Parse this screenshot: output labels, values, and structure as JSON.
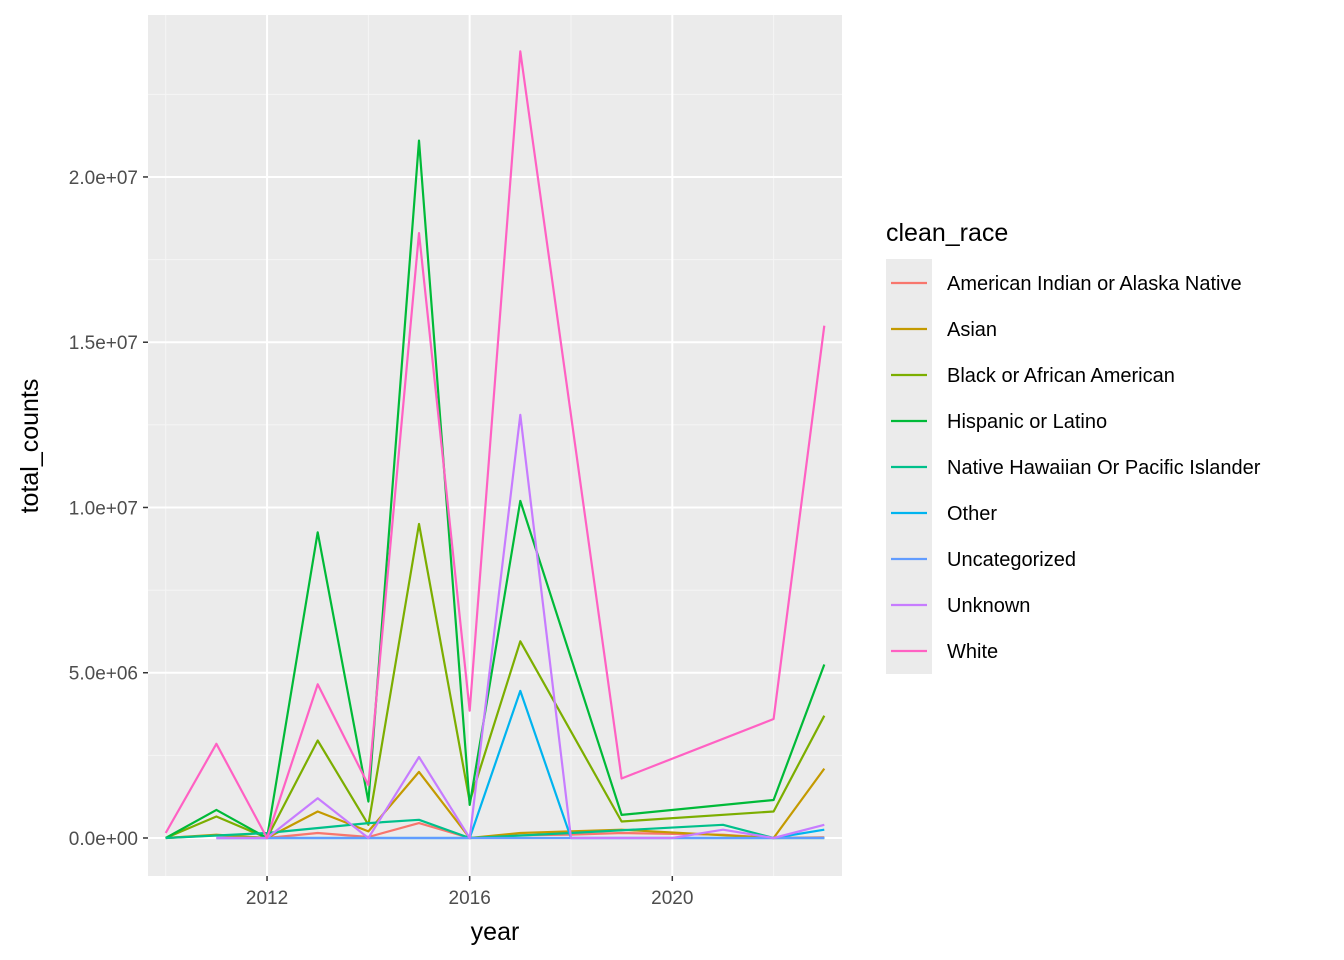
{
  "chart_data": {
    "type": "line",
    "xlabel": "year",
    "ylabel": "total_counts",
    "xlim": [
      2009.65,
      2023.35
    ],
    "ylim": [
      -1150000,
      24900000
    ],
    "x_ticks": [
      2012,
      2016,
      2020
    ],
    "x_tick_labels": [
      "2012",
      "2016",
      "2020"
    ],
    "x_minor_ticks": [
      2010,
      2014,
      2018,
      2022
    ],
    "y_ticks": [
      0,
      5000000,
      10000000,
      15000000,
      20000000
    ],
    "y_tick_labels": [
      "0.0e+00",
      "5.0e+06",
      "1.0e+07",
      "1.5e+07",
      "2.0e+07"
    ],
    "y_minor_ticks": [
      2500000,
      7500000,
      12500000,
      17500000,
      22500000
    ],
    "grid": true,
    "legend": {
      "title": "clean_race",
      "placement": "right"
    },
    "series": [
      {
        "name": "American Indian or Alaska Native",
        "color": "#F8766D",
        "points": [
          [
            2010,
            0
          ],
          [
            2011,
            80000
          ],
          [
            2012,
            0
          ],
          [
            2013,
            150000
          ],
          [
            2014,
            30000
          ],
          [
            2015,
            450000
          ],
          [
            2016,
            0
          ],
          [
            2017,
            80000
          ],
          [
            2018,
            100000
          ],
          [
            2019,
            150000
          ],
          [
            2021,
            100000
          ],
          [
            2022,
            0
          ],
          [
            2023,
            20000
          ]
        ]
      },
      {
        "name": "Asian",
        "color": "#C49A00",
        "points": [
          [
            2010,
            0
          ],
          [
            2011,
            100000
          ],
          [
            2012,
            0
          ],
          [
            2013,
            800000
          ],
          [
            2014,
            200000
          ],
          [
            2015,
            2000000
          ],
          [
            2016,
            0
          ],
          [
            2017,
            150000
          ],
          [
            2019,
            250000
          ],
          [
            2022,
            0
          ],
          [
            2023,
            2100000
          ]
        ]
      },
      {
        "name": "Black or African American",
        "color": "#7CAE00",
        "points": [
          [
            2010,
            0
          ],
          [
            2011,
            650000
          ],
          [
            2012,
            0
          ],
          [
            2013,
            2950000
          ],
          [
            2014,
            400000
          ],
          [
            2015,
            9500000
          ],
          [
            2016,
            1100000
          ],
          [
            2017,
            5950000
          ],
          [
            2019,
            500000
          ],
          [
            2022,
            800000
          ],
          [
            2023,
            3700000
          ]
        ]
      },
      {
        "name": "Hispanic or Latino",
        "color": "#00BA38",
        "points": [
          [
            2010,
            0
          ],
          [
            2011,
            850000
          ],
          [
            2012,
            0
          ],
          [
            2013,
            9250000
          ],
          [
            2014,
            1100000
          ],
          [
            2015,
            21100000
          ],
          [
            2016,
            1000000
          ],
          [
            2017,
            10200000
          ],
          [
            2019,
            700000
          ],
          [
            2022,
            1150000
          ],
          [
            2023,
            5250000
          ]
        ]
      },
      {
        "name": "Native Hawaiian Or Pacific Islander",
        "color": "#00C08B",
        "points": [
          [
            2010,
            0
          ],
          [
            2012,
            150000
          ],
          [
            2014,
            450000
          ],
          [
            2015,
            550000
          ],
          [
            2016,
            0
          ],
          [
            2018,
            150000
          ],
          [
            2021,
            400000
          ],
          [
            2022,
            0
          ],
          [
            2023,
            0
          ]
        ]
      },
      {
        "name": "Other",
        "color": "#00B4EF",
        "points": [
          [
            2011,
            0
          ],
          [
            2016,
            0
          ],
          [
            2017,
            4450000
          ],
          [
            2018,
            0
          ],
          [
            2022,
            0
          ],
          [
            2023,
            250000
          ]
        ]
      },
      {
        "name": "Uncategorized",
        "color": "#619CFF",
        "points": [
          [
            2011,
            0
          ],
          [
            2023,
            0
          ]
        ]
      },
      {
        "name": "Unknown",
        "color": "#C77CFF",
        "points": [
          [
            2011,
            0
          ],
          [
            2012,
            0
          ],
          [
            2013,
            1200000
          ],
          [
            2014,
            0
          ],
          [
            2015,
            2450000
          ],
          [
            2016,
            0
          ],
          [
            2017,
            12800000
          ],
          [
            2018,
            0
          ],
          [
            2020,
            0
          ],
          [
            2021,
            250000
          ],
          [
            2022,
            0
          ],
          [
            2023,
            400000
          ]
        ]
      },
      {
        "name": "White",
        "color": "#FF61C3",
        "points": [
          [
            2010,
            150000
          ],
          [
            2011,
            2850000
          ],
          [
            2012,
            0
          ],
          [
            2013,
            4650000
          ],
          [
            2014,
            1600000
          ],
          [
            2015,
            18300000
          ],
          [
            2016,
            3850000
          ],
          [
            2017,
            23800000
          ],
          [
            2019,
            1800000
          ],
          [
            2022,
            3600000
          ],
          [
            2023,
            15500000
          ]
        ]
      }
    ]
  }
}
